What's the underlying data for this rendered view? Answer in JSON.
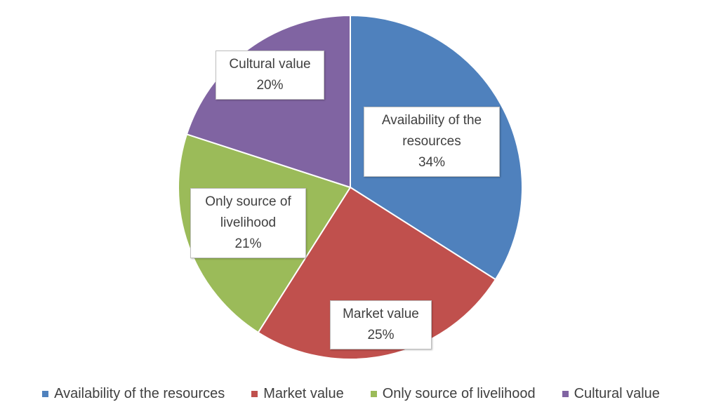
{
  "chart_data": {
    "type": "pie",
    "categories": [
      "Availability of the resources",
      "Market value",
      "Only source of livelihood",
      "Cultural value"
    ],
    "values": [
      34,
      25,
      21,
      20
    ],
    "value_labels": [
      "34%",
      "25%",
      "21%",
      "20%"
    ],
    "colors": [
      "#4f81bd",
      "#c0504d",
      "#9bbb59",
      "#8064a2"
    ],
    "legend": "bottom"
  }
}
